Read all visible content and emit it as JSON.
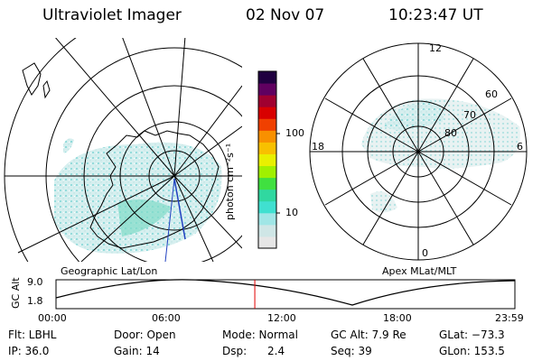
{
  "header": {
    "title": "Ultraviolet Imager",
    "date": "02 Nov 07",
    "time": "10:23:47 UT"
  },
  "left_panel": {
    "caption": "Geographic Lat/Lon"
  },
  "right_panel": {
    "caption": "Apex MLat/MLT",
    "mlt_labels": {
      "top": "12",
      "left": "18",
      "right": "6",
      "bottom": "0"
    },
    "lat_labels": [
      "60",
      "70",
      "80"
    ]
  },
  "colorbar": {
    "label": "photon cm⁻²s⁻¹",
    "tick_100": "100",
    "tick_10": "10",
    "colors": [
      "#e6e6e6",
      "#cfe6e6",
      "#a0e6e6",
      "#40e0d0",
      "#30d8a0",
      "#40e040",
      "#a0f000",
      "#e8f000",
      "#f8c000",
      "#f89000",
      "#f04000",
      "#d80000",
      "#a00030",
      "#600060",
      "#200040"
    ]
  },
  "altitude_plot": {
    "ylabel": "GC Alt",
    "y_tick_top": "9.0",
    "y_tick_bottom": "1.8",
    "x_ticks": [
      "00:00",
      "06:00",
      "12:00",
      "18:00",
      "23:59"
    ],
    "current_time_fraction": 0.4332,
    "marker_color": "#e00000"
  },
  "info": {
    "flt": "Flt: LBHL",
    "ip": "IP: 36.0",
    "door": "Door: Open",
    "gain": "Gain: 14",
    "mode": "Mode: Normal",
    "dsp_label": "Dsp:",
    "dsp_value": "2.4",
    "gc_alt": "GC Alt: 7.9 Re",
    "seq": "Seq: 39",
    "glat": "GLat: −73.3",
    "glon": "GLon: 153.5"
  }
}
